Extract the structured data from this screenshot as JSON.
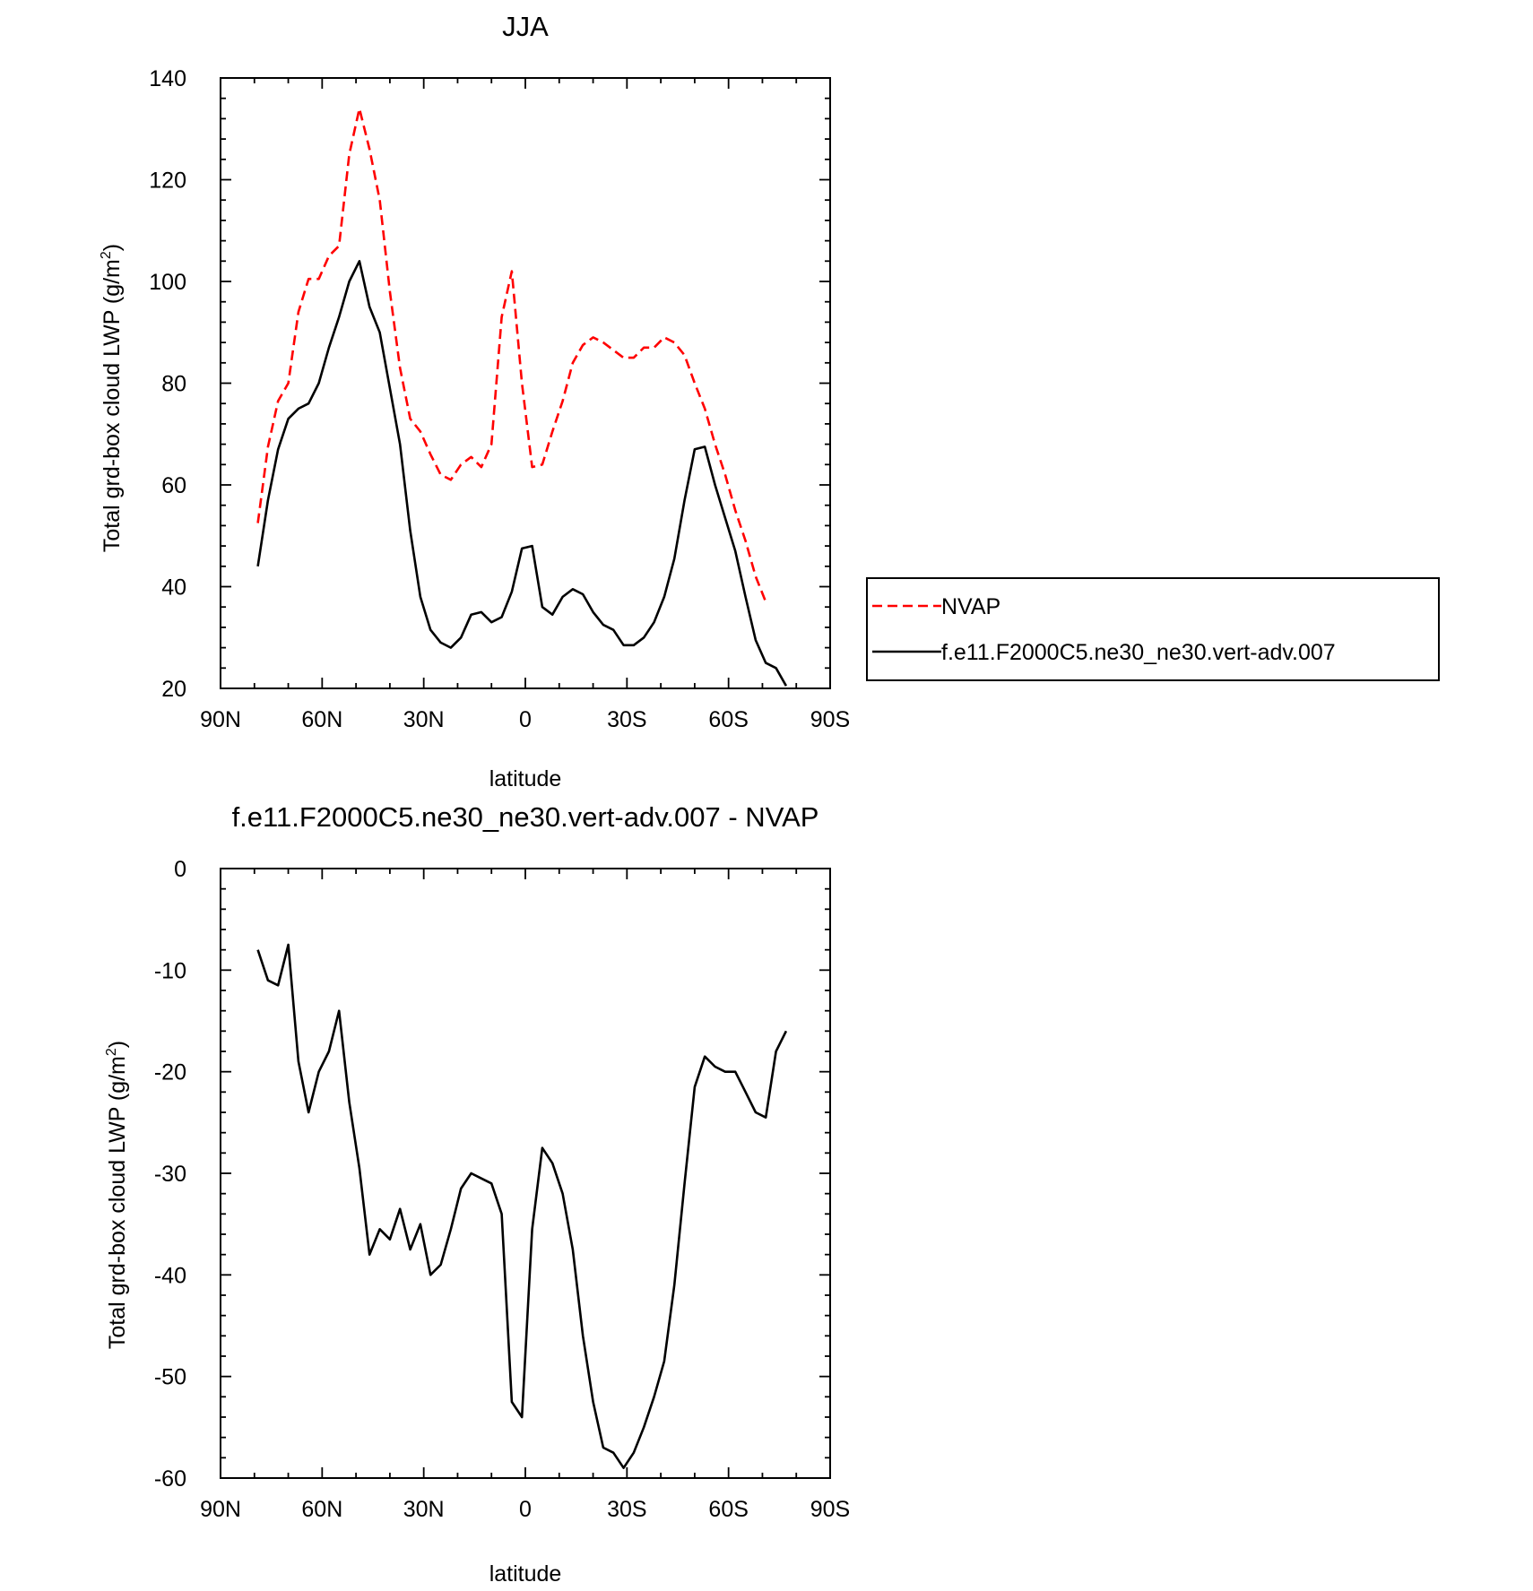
{
  "chart_data": [
    {
      "type": "line",
      "title": "JJA",
      "xlabel": "latitude",
      "ylabel": "Total grd-box cloud LWP (g/m",
      "ylabel_sup": "2",
      "ylabel_close": ")",
      "xlim": [
        90,
        -90
      ],
      "ylim": [
        20,
        140
      ],
      "xticks": [
        {
          "value": 90,
          "label": "90N"
        },
        {
          "value": 60,
          "label": "60N"
        },
        {
          "value": 30,
          "label": "30N"
        },
        {
          "value": 0,
          "label": "0"
        },
        {
          "value": -30,
          "label": "30S"
        },
        {
          "value": -60,
          "label": "60S"
        },
        {
          "value": -90,
          "label": "90S"
        }
      ],
      "yticks": [
        20,
        40,
        60,
        80,
        100,
        120,
        140
      ],
      "legend": {
        "placement": "right",
        "border": true
      },
      "series": [
        {
          "name": "NVAP",
          "color": "#ff0000",
          "dash": "dashed",
          "points": [
            [
              79,
              52.5
            ],
            [
              76,
              67.5
            ],
            [
              73,
              76.5
            ],
            [
              70,
              80
            ],
            [
              67,
              94
            ],
            [
              64,
              100.5
            ],
            [
              61,
              100.5
            ],
            [
              58,
              105
            ],
            [
              55,
              107
            ],
            [
              52,
              125
            ],
            [
              49,
              134
            ],
            [
              46,
              126
            ],
            [
              43,
              116
            ],
            [
              40,
              98
            ],
            [
              37,
              83
            ],
            [
              34,
              73
            ],
            [
              31,
              70.5
            ],
            [
              28,
              66
            ],
            [
              25,
              62
            ],
            [
              22,
              61
            ],
            [
              19,
              64
            ],
            [
              16,
              65.5
            ],
            [
              13,
              63.5
            ],
            [
              10,
              68
            ],
            [
              7,
              93
            ],
            [
              4,
              102
            ],
            [
              1,
              80
            ],
            [
              -2,
              63.5
            ],
            [
              -5,
              64
            ],
            [
              -8,
              70.5
            ],
            [
              -11,
              76.5
            ],
            [
              -14,
              84
            ],
            [
              -17,
              87.5
            ],
            [
              -20,
              89
            ],
            [
              -23,
              88
            ],
            [
              -26,
              86.5
            ],
            [
              -29,
              85
            ],
            [
              -32,
              85
            ],
            [
              -35,
              87
            ],
            [
              -38,
              87
            ],
            [
              -41,
              89
            ],
            [
              -44,
              88
            ],
            [
              -47,
              85.5
            ],
            [
              -50,
              80
            ],
            [
              -53,
              75
            ],
            [
              -56,
              68
            ],
            [
              -59,
              62
            ],
            [
              -62,
              55
            ],
            [
              -65,
              49
            ],
            [
              -68,
              42
            ],
            [
              -71,
              37
            ]
          ]
        },
        {
          "name": "f.e11.F2000C5.ne30_ne30.vert-adv.007",
          "color": "#000000",
          "dash": "solid",
          "points": [
            [
              79,
              44
            ],
            [
              76,
              57
            ],
            [
              73,
              67
            ],
            [
              70,
              73
            ],
            [
              67,
              75
            ],
            [
              64,
              76
            ],
            [
              61,
              80
            ],
            [
              58,
              87
            ],
            [
              55,
              93
            ],
            [
              52,
              100
            ],
            [
              49,
              104
            ],
            [
              46,
              95
            ],
            [
              43,
              90
            ],
            [
              40,
              79
            ],
            [
              37,
              68
            ],
            [
              34,
              51
            ],
            [
              31,
              38
            ],
            [
              28,
              31.5
            ],
            [
              25,
              29
            ],
            [
              22,
              28
            ],
            [
              19,
              30
            ],
            [
              16,
              34.5
            ],
            [
              13,
              35
            ],
            [
              10,
              33
            ],
            [
              7,
              34
            ],
            [
              4,
              39
            ],
            [
              1,
              47.5
            ],
            [
              -2,
              48
            ],
            [
              -5,
              36
            ],
            [
              -8,
              34.5
            ],
            [
              -11,
              38
            ],
            [
              -14,
              39.5
            ],
            [
              -17,
              38.5
            ],
            [
              -20,
              35
            ],
            [
              -23,
              32.5
            ],
            [
              -26,
              31.5
            ],
            [
              -29,
              28.5
            ],
            [
              -32,
              28.5
            ],
            [
              -35,
              30
            ],
            [
              -38,
              33
            ],
            [
              -41,
              38
            ],
            [
              -44,
              45.5
            ],
            [
              -47,
              57
            ],
            [
              -50,
              67
            ],
            [
              -53,
              67.5
            ],
            [
              -56,
              60
            ],
            [
              -59,
              53.5
            ],
            [
              -62,
              47
            ],
            [
              -65,
              38
            ],
            [
              -68,
              29.5
            ],
            [
              -71,
              25
            ],
            [
              -74,
              24
            ],
            [
              -77,
              20.5
            ]
          ]
        }
      ]
    },
    {
      "type": "line",
      "title": "f.e11.F2000C5.ne30_ne30.vert-adv.007 - NVAP",
      "xlabel": "latitude",
      "ylabel": "Total grd-box cloud LWP (g/m",
      "ylabel_sup": "2",
      "ylabel_close": ")",
      "xlim": [
        90,
        -90
      ],
      "ylim": [
        -60,
        0
      ],
      "xticks": [
        {
          "value": 90,
          "label": "90N"
        },
        {
          "value": 60,
          "label": "60N"
        },
        {
          "value": 30,
          "label": "30N"
        },
        {
          "value": 0,
          "label": "0"
        },
        {
          "value": -30,
          "label": "30S"
        },
        {
          "value": -60,
          "label": "60S"
        },
        {
          "value": -90,
          "label": "90S"
        }
      ],
      "yticks": [
        0,
        -10,
        -20,
        -30,
        -40,
        -50,
        -60
      ],
      "series": [
        {
          "color": "#000000",
          "dash": "solid",
          "points": [
            [
              79,
              -8
            ],
            [
              76,
              -11
            ],
            [
              73,
              -11.5
            ],
            [
              70,
              -7.5
            ],
            [
              67,
              -19
            ],
            [
              64,
              -24
            ],
            [
              61,
              -20
            ],
            [
              58,
              -18
            ],
            [
              55,
              -14
            ],
            [
              52,
              -23
            ],
            [
              49,
              -29.5
            ],
            [
              46,
              -38
            ],
            [
              43,
              -35.5
            ],
            [
              40,
              -36.5
            ],
            [
              37,
              -33.5
            ],
            [
              34,
              -37.5
            ],
            [
              31,
              -35
            ],
            [
              28,
              -40
            ],
            [
              25,
              -39
            ],
            [
              22,
              -35.5
            ],
            [
              19,
              -31.5
            ],
            [
              16,
              -30
            ],
            [
              13,
              -30.5
            ],
            [
              10,
              -31
            ],
            [
              7,
              -34
            ],
            [
              4,
              -52.5
            ],
            [
              1,
              -54
            ],
            [
              -2,
              -35.5
            ],
            [
              -5,
              -27.5
            ],
            [
              -8,
              -29
            ],
            [
              -11,
              -32
            ],
            [
              -14,
              -37.5
            ],
            [
              -17,
              -46
            ],
            [
              -20,
              -52.5
            ],
            [
              -23,
              -57
            ],
            [
              -26,
              -57.5
            ],
            [
              -29,
              -59
            ],
            [
              -32,
              -57.5
            ],
            [
              -35,
              -55
            ],
            [
              -38,
              -52
            ],
            [
              -41,
              -48.5
            ],
            [
              -44,
              -41
            ],
            [
              -47,
              -31
            ],
            [
              -50,
              -21.5
            ],
            [
              -53,
              -18.5
            ],
            [
              -56,
              -19.5
            ],
            [
              -59,
              -20
            ],
            [
              -62,
              -20
            ],
            [
              -65,
              -22
            ],
            [
              -68,
              -24
            ],
            [
              -71,
              -24.5
            ],
            [
              -74,
              -18
            ],
            [
              -77,
              -16
            ]
          ]
        }
      ]
    }
  ]
}
